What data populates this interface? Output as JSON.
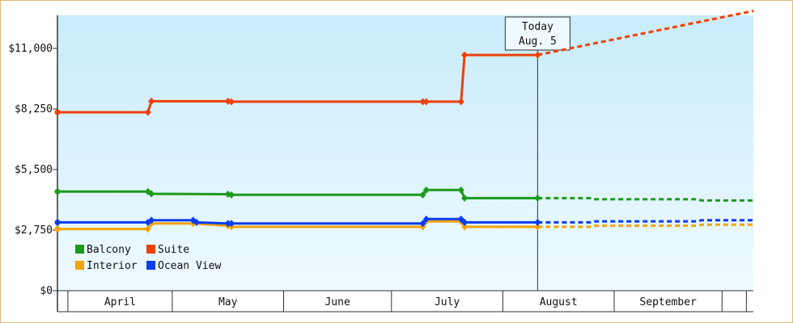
{
  "chart_data": {
    "type": "line",
    "title": "",
    "xlabel": "",
    "ylabel": "",
    "x_months": [
      "April",
      "May",
      "June",
      "July",
      "August",
      "September"
    ],
    "ylim": [
      0,
      12500
    ],
    "yticks": [
      {
        "value": 0,
        "label": "$0"
      },
      {
        "value": 2750,
        "label": "$2,750"
      },
      {
        "value": 5500,
        "label": "$5,500"
      },
      {
        "value": 8250,
        "label": "$8,250"
      },
      {
        "value": 11000,
        "label": "$11,000"
      }
    ],
    "xlim": [
      "2025-03-20",
      "2025-10-06"
    ],
    "month_edges": [
      "2025-03-23",
      "2025-04-22",
      "2025-05-24",
      "2025-06-24",
      "2025-07-26",
      "2025-08-27",
      "2025-09-27",
      "2025-10-04"
    ],
    "today": {
      "date": "2025-08-05",
      "line1": "Today",
      "line2": "Aug. 5"
    },
    "legend": {
      "placement": "bottom-left"
    },
    "grid": false,
    "series": [
      {
        "name": "Balcony",
        "color": "#1c9a1c",
        "points": [
          [
            "2025-03-20",
            4500
          ],
          [
            "2025-04-15",
            4500
          ],
          [
            "2025-04-16",
            4400
          ],
          [
            "2025-05-08",
            4380
          ],
          [
            "2025-05-09",
            4350
          ],
          [
            "2025-07-03",
            4350
          ],
          [
            "2025-07-04",
            4570
          ],
          [
            "2025-07-14",
            4570
          ],
          [
            "2025-07-15",
            4200
          ],
          [
            "2025-08-05",
            4200
          ]
        ],
        "forecast": [
          [
            "2025-08-05",
            4200
          ],
          [
            "2025-08-20",
            4200
          ],
          [
            "2025-08-21",
            4150
          ],
          [
            "2025-09-20",
            4150
          ],
          [
            "2025-09-21",
            4100
          ],
          [
            "2025-10-06",
            4100
          ]
        ]
      },
      {
        "name": "Suite",
        "color": "#f0400a",
        "points": [
          [
            "2025-03-20",
            8100
          ],
          [
            "2025-04-15",
            8100
          ],
          [
            "2025-04-16",
            8600
          ],
          [
            "2025-05-08",
            8600
          ],
          [
            "2025-05-09",
            8580
          ],
          [
            "2025-07-03",
            8580
          ],
          [
            "2025-07-04",
            8580
          ],
          [
            "2025-07-14",
            8580
          ],
          [
            "2025-07-15",
            10700
          ],
          [
            "2025-08-05",
            10700
          ]
        ],
        "forecast": [
          [
            "2025-08-05",
            10700
          ],
          [
            "2025-10-06",
            12700
          ]
        ]
      },
      {
        "name": "Interior",
        "color": "#f5a30a",
        "points": [
          [
            "2025-03-20",
            2800
          ],
          [
            "2025-04-15",
            2800
          ],
          [
            "2025-04-16",
            3050
          ],
          [
            "2025-04-28",
            3050
          ],
          [
            "2025-05-08",
            2950
          ],
          [
            "2025-05-09",
            2900
          ],
          [
            "2025-07-03",
            2900
          ],
          [
            "2025-07-04",
            3150
          ],
          [
            "2025-07-14",
            3150
          ],
          [
            "2025-07-15",
            2900
          ],
          [
            "2025-08-05",
            2900
          ]
        ],
        "forecast": [
          [
            "2025-08-05",
            2900
          ],
          [
            "2025-08-20",
            2900
          ],
          [
            "2025-08-21",
            2950
          ],
          [
            "2025-09-20",
            2950
          ],
          [
            "2025-09-21",
            3000
          ],
          [
            "2025-10-06",
            3000
          ]
        ]
      },
      {
        "name": "Ocean View",
        "color": "#0a3cf0",
        "points": [
          [
            "2025-03-20",
            3100
          ],
          [
            "2025-04-15",
            3100
          ],
          [
            "2025-04-16",
            3200
          ],
          [
            "2025-04-28",
            3200
          ],
          [
            "2025-04-29",
            3100
          ],
          [
            "2025-05-08",
            3050
          ],
          [
            "2025-05-09",
            3050
          ],
          [
            "2025-07-03",
            3050
          ],
          [
            "2025-07-04",
            3250
          ],
          [
            "2025-07-14",
            3250
          ],
          [
            "2025-07-15",
            3100
          ],
          [
            "2025-08-05",
            3100
          ]
        ],
        "forecast": [
          [
            "2025-08-05",
            3100
          ],
          [
            "2025-08-20",
            3100
          ],
          [
            "2025-08-21",
            3150
          ],
          [
            "2025-09-20",
            3150
          ],
          [
            "2025-09-21",
            3200
          ],
          [
            "2025-10-06",
            3200
          ]
        ]
      }
    ]
  }
}
